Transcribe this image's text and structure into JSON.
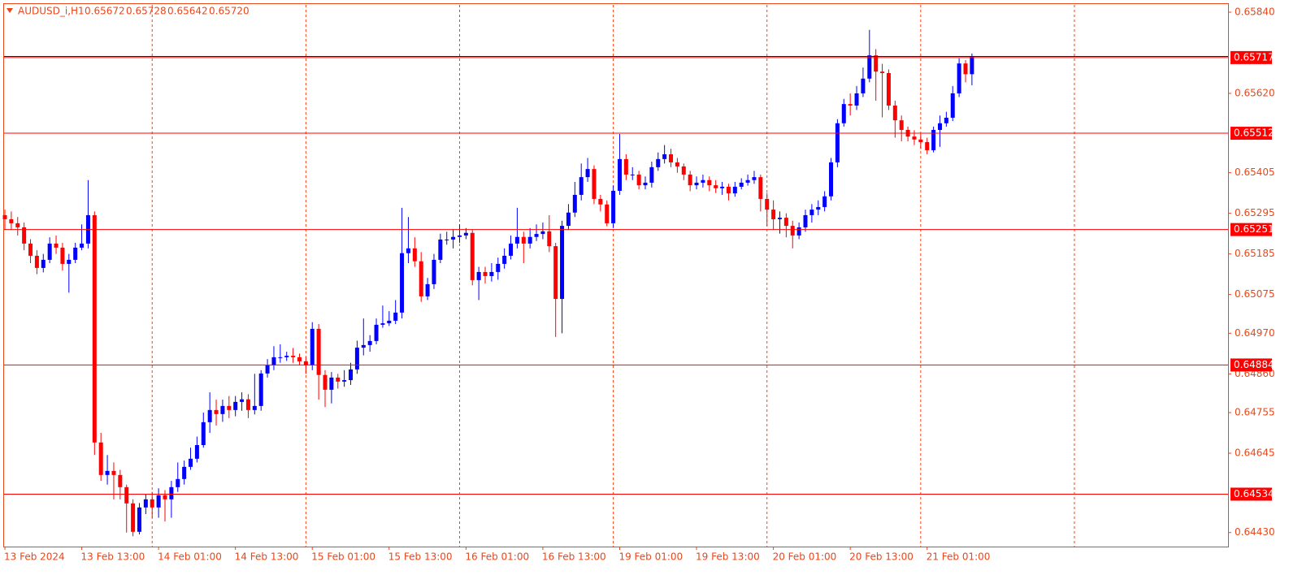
{
  "chart_data": {
    "type": "candlestick",
    "header": {
      "symbol": "AUDUSD_i,H1",
      "ohlc": [
        "0.65672",
        "0.65728",
        "0.65642",
        "0.65720"
      ]
    },
    "categories": [
      "13 Feb 2024",
      null,
      null,
      null,
      null,
      null,
      null,
      null,
      null,
      null,
      null,
      null,
      "13 Feb 13:00",
      null,
      null,
      null,
      null,
      null,
      null,
      null,
      null,
      null,
      null,
      null,
      "14 Feb 01:00",
      null,
      null,
      null,
      null,
      null,
      null,
      null,
      null,
      null,
      null,
      null,
      "14 Feb 13:00",
      null,
      null,
      null,
      null,
      null,
      null,
      null,
      null,
      null,
      null,
      null,
      "15 Feb 01:00",
      null,
      null,
      null,
      null,
      null,
      null,
      null,
      null,
      null,
      null,
      null,
      "15 Feb 13:00",
      null,
      null,
      null,
      null,
      null,
      null,
      null,
      null,
      null,
      null,
      null,
      "16 Feb 01:00",
      null,
      null,
      null,
      null,
      null,
      null,
      null,
      null,
      null,
      null,
      null,
      "16 Feb 13:00",
      null,
      null,
      null,
      null,
      null,
      null,
      null,
      null,
      null,
      null,
      null,
      "19 Feb 01:00",
      null,
      null,
      null,
      null,
      null,
      null,
      null,
      null,
      null,
      null,
      null,
      "19 Feb 13:00",
      null,
      null,
      null,
      null,
      null,
      null,
      null,
      null,
      null,
      null,
      null,
      "20 Feb 01:00",
      null,
      null,
      null,
      null,
      null,
      null,
      null,
      null,
      null,
      null,
      null,
      "20 Feb 13:00",
      null,
      null,
      null,
      null,
      null,
      null,
      null,
      null,
      null,
      null,
      null,
      "21 Feb 01:00",
      null,
      null,
      null,
      null,
      null,
      null,
      null
    ],
    "open": [
      0.6529,
      0.65279,
      0.65268,
      0.65257,
      0.65213,
      0.6518,
      0.65147,
      0.65169,
      0.65213,
      0.65202,
      0.65158,
      0.65169,
      0.65202,
      0.65213,
      0.6529,
      0.64674,
      0.64586,
      0.64597,
      0.64586,
      0.64553,
      0.64509,
      0.64432,
      0.64498,
      0.6452,
      0.64498,
      0.64531,
      0.6452,
      0.64553,
      0.64575,
      0.64608,
      0.6463,
      0.64667,
      0.64729,
      0.64762,
      0.64751,
      0.64773,
      0.64762,
      0.64784,
      0.64791,
      0.64762,
      0.64773,
      0.64861,
      0.64883,
      0.64905,
      0.64905,
      0.64909,
      0.64905,
      0.64894,
      0.64883,
      0.64982,
      0.64857,
      0.64817,
      0.6485,
      0.64839,
      0.64843,
      0.64872,
      0.64931,
      0.64938,
      0.64949,
      0.64993,
      0.64997,
      0.65004,
      0.65026,
      0.65187,
      0.652,
      0.65165,
      0.6507,
      0.65103,
      0.65169,
      0.65224,
      0.65224,
      0.65231,
      0.65235,
      0.65242,
      0.65114,
      0.65136,
      0.65125,
      0.65136,
      0.65158,
      0.6518,
      0.65213,
      0.65231,
      0.65213,
      0.65231,
      0.65239,
      0.65246,
      0.65206,
      0.65063,
      0.65261,
      0.65297,
      0.65345,
      0.65393,
      0.65415,
      0.65334,
      0.65319,
      0.65268,
      0.65356,
      0.65442,
      0.654,
      0.654,
      0.65371,
      0.65378,
      0.6542,
      0.65442,
      0.65455,
      0.65433,
      0.65422,
      0.654,
      0.65371,
      0.65378,
      0.65385,
      0.65371,
      0.65363,
      0.65367,
      0.65349,
      0.65367,
      0.65378,
      0.65385,
      0.65393,
      0.65334,
      0.65305,
      0.65279,
      0.65283,
      0.65261,
      0.65235,
      0.65257,
      0.6529,
      0.65305,
      0.65312,
      0.65341,
      0.65433,
      0.65539,
      0.65591,
      0.65587,
      0.6562,
      0.6566,
      0.65723,
      0.65679,
      0.65675,
      0.65587,
      0.65547,
      0.65521,
      0.65503,
      0.65495,
      0.65488,
      0.65466,
      0.65521,
      0.65539,
      0.65554,
      0.6562,
      0.65701,
      0.65672
    ],
    "high": [
      0.65305,
      0.653,
      0.65285,
      0.6527,
      0.65225,
      0.65195,
      0.65185,
      0.6523,
      0.65235,
      0.65215,
      0.65185,
      0.65215,
      0.65265,
      0.65385,
      0.653,
      0.647,
      0.6464,
      0.6462,
      0.646,
      0.6456,
      0.6452,
      0.6451,
      0.64535,
      0.6454,
      0.6455,
      0.64545,
      0.6457,
      0.6462,
      0.64625,
      0.6466,
      0.6469,
      0.64755,
      0.6481,
      0.6479,
      0.6479,
      0.648,
      0.648,
      0.6481,
      0.64805,
      0.6486,
      0.6487,
      0.649,
      0.64935,
      0.6494,
      0.6492,
      0.6493,
      0.64915,
      0.64905,
      0.65,
      0.64995,
      0.6487,
      0.64865,
      0.6486,
      0.6487,
      0.6489,
      0.6495,
      0.6501,
      0.64965,
      0.6501,
      0.65045,
      0.6503,
      0.6506,
      0.6531,
      0.65285,
      0.6523,
      0.6519,
      0.6512,
      0.65185,
      0.6524,
      0.65245,
      0.6525,
      0.65265,
      0.65255,
      0.6525,
      0.6515,
      0.6515,
      0.6516,
      0.65175,
      0.652,
      0.65235,
      0.6531,
      0.65245,
      0.65255,
      0.65265,
      0.6527,
      0.6529,
      0.65215,
      0.65275,
      0.6532,
      0.6538,
      0.6543,
      0.65445,
      0.65425,
      0.65345,
      0.6533,
      0.6537,
      0.6551,
      0.65455,
      0.6542,
      0.6541,
      0.65395,
      0.65435,
      0.6546,
      0.6548,
      0.6547,
      0.65445,
      0.6543,
      0.6541,
      0.65395,
      0.654,
      0.65395,
      0.65385,
      0.6538,
      0.65375,
      0.6538,
      0.6539,
      0.654,
      0.6541,
      0.654,
      0.6535,
      0.6533,
      0.653,
      0.65295,
      0.65275,
      0.6527,
      0.65305,
      0.6532,
      0.6533,
      0.65355,
      0.65445,
      0.6555,
      0.65605,
      0.6562,
      0.6564,
      0.6569,
      0.65792,
      0.6574,
      0.657,
      0.65685,
      0.656,
      0.6556,
      0.6553,
      0.6552,
      0.6551,
      0.655,
      0.6553,
      0.6556,
      0.6557,
      0.6564,
      0.65715,
      0.6571,
      0.65728
    ],
    "low": [
      0.6525,
      0.6525,
      0.65235,
      0.65195,
      0.6516,
      0.6513,
      0.65135,
      0.6516,
      0.65185,
      0.6514,
      0.6508,
      0.6516,
      0.65195,
      0.652,
      0.6464,
      0.6457,
      0.6456,
      0.6452,
      0.6452,
      0.6443,
      0.6442,
      0.64425,
      0.6448,
      0.6447,
      0.6447,
      0.6446,
      0.6447,
      0.6454,
      0.6456,
      0.646,
      0.6462,
      0.6466,
      0.647,
      0.6472,
      0.6473,
      0.6474,
      0.64745,
      0.6476,
      0.6474,
      0.6475,
      0.6476,
      0.6485,
      0.6487,
      0.6489,
      0.64895,
      0.6489,
      0.64885,
      0.6486,
      0.6487,
      0.6479,
      0.6477,
      0.6478,
      0.6482,
      0.64825,
      0.6483,
      0.6486,
      0.6491,
      0.6492,
      0.6494,
      0.64985,
      0.6499,
      0.64995,
      0.6501,
      0.6516,
      0.6515,
      0.65055,
      0.6506,
      0.6509,
      0.6516,
      0.6521,
      0.652,
      0.65215,
      0.65225,
      0.651,
      0.6506,
      0.65105,
      0.6511,
      0.65115,
      0.65145,
      0.6517,
      0.652,
      0.6516,
      0.652,
      0.6522,
      0.65225,
      0.6519,
      0.6496,
      0.6497,
      0.6525,
      0.65285,
      0.6533,
      0.6538,
      0.6532,
      0.653,
      0.6526,
      0.65255,
      0.65345,
      0.65385,
      0.65385,
      0.6536,
      0.6536,
      0.65365,
      0.6541,
      0.6543,
      0.6542,
      0.65405,
      0.65385,
      0.65355,
      0.6536,
      0.65365,
      0.65355,
      0.6535,
      0.65345,
      0.6533,
      0.6534,
      0.6536,
      0.6537,
      0.65375,
      0.653,
      0.6526,
      0.6525,
      0.6524,
      0.6523,
      0.652,
      0.65225,
      0.65245,
      0.6527,
      0.6529,
      0.653,
      0.6533,
      0.6542,
      0.6553,
      0.6556,
      0.65575,
      0.6561,
      0.6565,
      0.656,
      0.65555,
      0.65575,
      0.655,
      0.6549,
      0.6549,
      0.6548,
      0.6547,
      0.65455,
      0.6546,
      0.65475,
      0.6553,
      0.65545,
      0.6561,
      0.6565,
      0.65642
    ],
    "close": [
      0.65279,
      0.65268,
      0.65257,
      0.65213,
      0.6518,
      0.65147,
      0.65169,
      0.65213,
      0.65202,
      0.65158,
      0.65169,
      0.65202,
      0.65213,
      0.6529,
      0.64674,
      0.64586,
      0.64597,
      0.64586,
      0.64553,
      0.64509,
      0.64432,
      0.64498,
      0.6452,
      0.64498,
      0.64531,
      0.6452,
      0.64553,
      0.64575,
      0.64608,
      0.6463,
      0.64667,
      0.64729,
      0.64762,
      0.64751,
      0.64773,
      0.64762,
      0.64784,
      0.64791,
      0.64762,
      0.64773,
      0.64861,
      0.64883,
      0.64905,
      0.64905,
      0.64909,
      0.64905,
      0.64894,
      0.64883,
      0.64982,
      0.64857,
      0.64817,
      0.6485,
      0.64839,
      0.64843,
      0.64872,
      0.64931,
      0.64938,
      0.64949,
      0.64993,
      0.64997,
      0.65004,
      0.65026,
      0.65187,
      0.652,
      0.65165,
      0.6507,
      0.65103,
      0.65169,
      0.65224,
      0.65224,
      0.65231,
      0.65235,
      0.65242,
      0.65114,
      0.65136,
      0.65125,
      0.65136,
      0.65158,
      0.6518,
      0.65213,
      0.65231,
      0.65213,
      0.65231,
      0.65239,
      0.65246,
      0.65206,
      0.65063,
      0.65261,
      0.65297,
      0.65345,
      0.65393,
      0.65415,
      0.65334,
      0.65319,
      0.65268,
      0.65356,
      0.65442,
      0.654,
      0.654,
      0.65371,
      0.65378,
      0.6542,
      0.65442,
      0.65455,
      0.65433,
      0.65422,
      0.654,
      0.65371,
      0.65378,
      0.65385,
      0.65371,
      0.65363,
      0.65367,
      0.65349,
      0.65367,
      0.65378,
      0.65385,
      0.65393,
      0.65334,
      0.65305,
      0.65279,
      0.65283,
      0.65261,
      0.65235,
      0.65257,
      0.6529,
      0.65305,
      0.65312,
      0.65341,
      0.65433,
      0.65539,
      0.65591,
      0.65587,
      0.6562,
      0.6566,
      0.65723,
      0.65679,
      0.65675,
      0.65587,
      0.65547,
      0.65521,
      0.65503,
      0.65495,
      0.65488,
      0.65466,
      0.65521,
      0.65539,
      0.65554,
      0.6562,
      0.65701,
      0.65672,
      0.6572
    ],
    "up_color": "#0000ff",
    "down_color": "#ff0000",
    "levels": [
      0.65717,
      0.65512,
      0.65251,
      0.64884,
      0.64534
    ],
    "level_color": "#ff0000",
    "price_line_color": "#0000ff",
    "ylim": [
      0.64392,
      0.65862
    ],
    "yticks": [
      {
        "value": 0.6584,
        "label": "0.65840"
      },
      {
        "value": 0.6562,
        "label": "0.65620"
      },
      0.65405,
      0.65295,
      0.65185,
      0.65075,
      {
        "value": 0.6497,
        "label": "0.64970"
      },
      {
        "value": 0.6486,
        "label": "0.64860"
      },
      0.64755,
      0.64645,
      {
        "value": 0.6443,
        "label": "0.64430"
      }
    ]
  }
}
